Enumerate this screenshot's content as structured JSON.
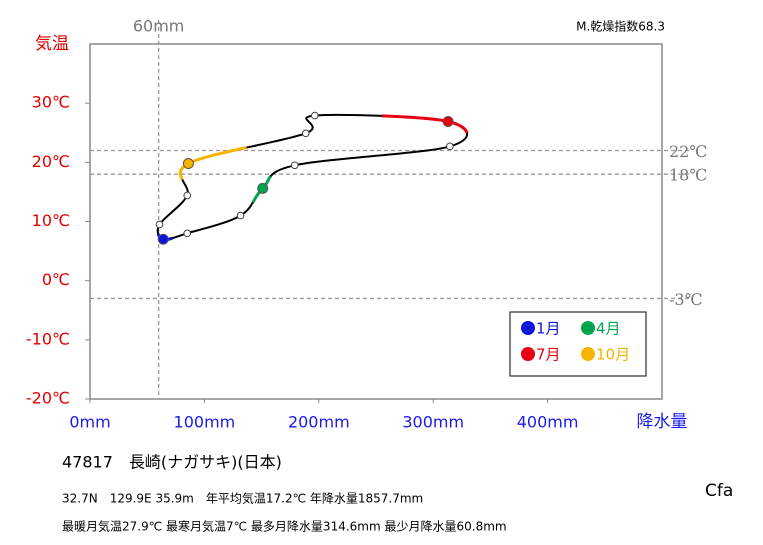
{
  "chart_data": {
    "type": "line",
    "xlabel": "降水量",
    "ylabel": "気温",
    "dryness_index": "M.乾燥指数68.3",
    "x": [
      64,
      85,
      131.6,
      151,
      179,
      314.6,
      313,
      196.5,
      188.6,
      86,
      85,
      60.8
    ],
    "values": [
      7,
      8,
      11,
      15.6,
      19.5,
      22.7,
      26.9,
      27.9,
      24.9,
      19.8,
      14.4,
      9.5
    ],
    "color": "#000000",
    "point_colors": [
      "#0a14dc",
      null,
      null,
      "#00a550",
      null,
      null,
      "#e60012",
      null,
      null,
      "#f5b400",
      null,
      null
    ],
    "xlim": [
      0,
      500
    ],
    "ylim": [
      -20,
      40
    ],
    "xticks": [
      {
        "value": 0,
        "label": "0mm"
      },
      {
        "value": 100,
        "label": "100mm"
      },
      {
        "value": 200,
        "label": "200mm"
      },
      {
        "value": 300,
        "label": "300mm"
      },
      {
        "value": 400,
        "label": "400mm"
      }
    ],
    "yticks": [
      {
        "value": -20,
        "label": "-20℃"
      },
      {
        "value": -10,
        "label": "-10℃"
      },
      {
        "value": 0,
        "label": "0℃"
      },
      {
        "value": 10,
        "label": "10℃"
      },
      {
        "value": 20,
        "label": "20℃"
      },
      {
        "value": 30,
        "label": "30℃"
      }
    ],
    "x_reference_lines": [
      {
        "value": 60,
        "label": "60mm"
      }
    ],
    "y_reference_lines": [
      {
        "value": 22,
        "label": "22℃"
      },
      {
        "value": 18,
        "label": "18℃"
      },
      {
        "value": -3,
        "label": "-3℃"
      }
    ],
    "legend": [
      {
        "label": "1月",
        "color": "#0a14dc"
      },
      {
        "label": "4月",
        "color": "#00a550"
      },
      {
        "label": "7月",
        "color": "#e60012"
      },
      {
        "label": "10月",
        "color": "#f5b400"
      }
    ],
    "station": "47817　長崎(ナガサキ)(日本)",
    "info_line1": "32.7N　129.9E 35.9m　年平均気温17.2℃ 年降水量1857.7mm",
    "info_line2": "最暖月気温27.9℃ 最寒月気温7℃ 最多月降水量314.6mm 最少月降水量60.8mm",
    "climate_class": "Cfa"
  }
}
